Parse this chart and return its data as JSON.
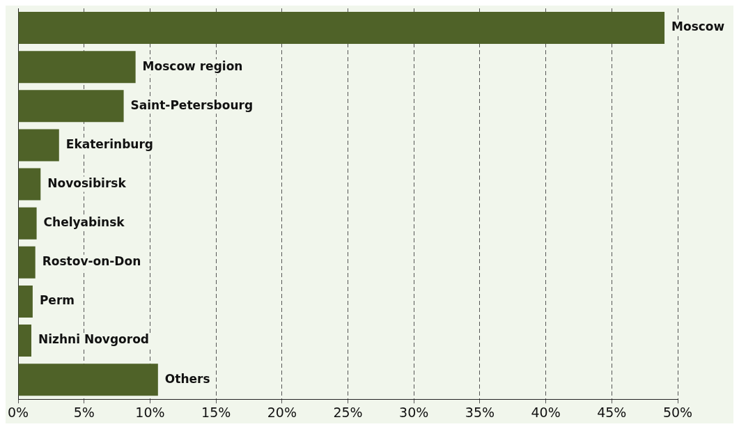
{
  "chart_data": {
    "type": "bar",
    "orientation": "horizontal",
    "categories": [
      "Moscow",
      "Moscow region",
      "Saint-Petersbourg",
      "Ekaterinburg",
      "Novosibirsk",
      "Chelyabinsk",
      "Rostov-on-Don",
      "Perm",
      "Nizhni Novgorod",
      "Others"
    ],
    "values": [
      49,
      8.9,
      8,
      3.1,
      1.7,
      1.4,
      1.3,
      1.1,
      1,
      10.6
    ],
    "color": "#4f6228",
    "xlim": [
      0,
      50
    ],
    "xticks": [
      {
        "value": 0,
        "label": "0%"
      },
      {
        "value": 5,
        "label": "5%"
      },
      {
        "value": 10,
        "label": "10%"
      },
      {
        "value": 15,
        "label": "15%"
      },
      {
        "value": 20,
        "label": "20%"
      },
      {
        "value": 25,
        "label": "25%"
      },
      {
        "value": 30,
        "label": "30%"
      },
      {
        "value": 35,
        "label": "35%"
      },
      {
        "value": 40,
        "label": "40%"
      },
      {
        "value": 45,
        "label": "45%"
      },
      {
        "value": 50,
        "label": "50%"
      }
    ],
    "grid": "x",
    "tick_labels": "x"
  }
}
